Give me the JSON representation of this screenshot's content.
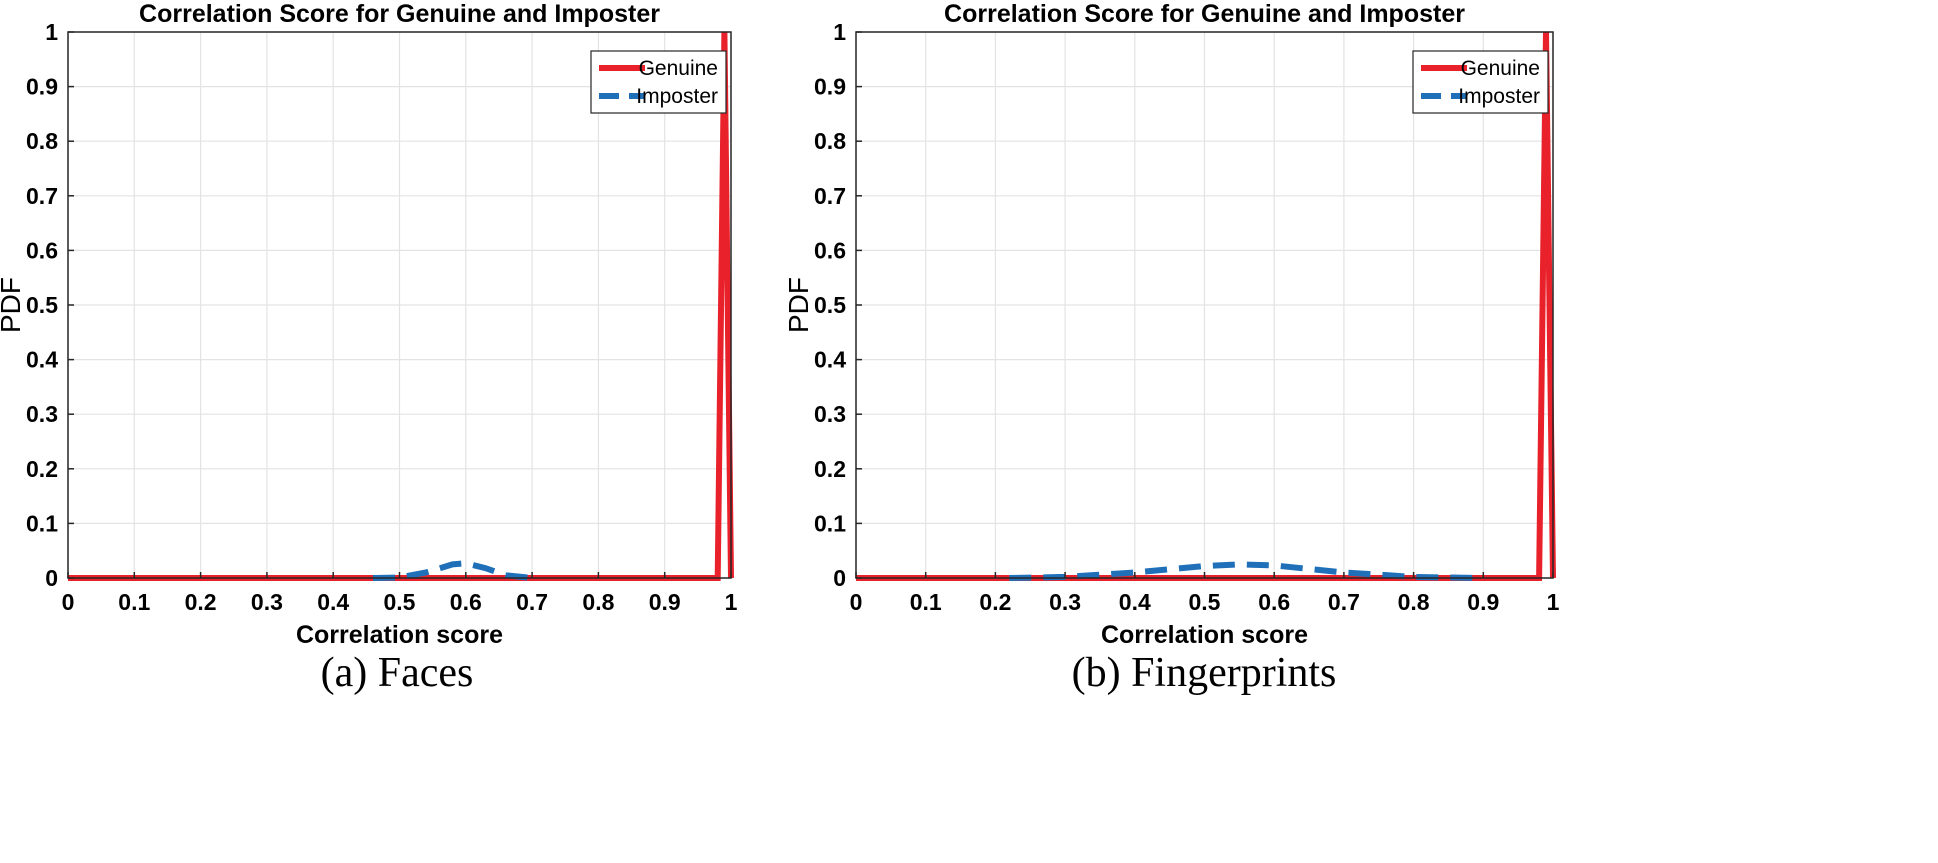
{
  "chart_data": [
    {
      "type": "line",
      "caption": "(a) Faces",
      "title": "Correlation Score for Genuine and Imposter",
      "xlabel": "Correlation score",
      "ylabel": "PDF",
      "xlim": [
        0,
        1
      ],
      "ylim": [
        0,
        1
      ],
      "grid": true,
      "xticks": [
        0,
        0.1,
        0.2,
        0.3,
        0.4,
        0.5,
        0.6,
        0.7,
        0.8,
        0.9,
        1
      ],
      "xtick_labels": [
        "0",
        "0.1",
        "0.2",
        "0.3",
        "0.4",
        "0.5",
        "0.6",
        "0.7",
        "0.8",
        "0.9",
        "1"
      ],
      "yticks": [
        0,
        0.1,
        0.2,
        0.3,
        0.4,
        0.5,
        0.6,
        0.7,
        0.8,
        0.9,
        1
      ],
      "ytick_labels": [
        "0",
        "0.1",
        "0.2",
        "0.3",
        "0.4",
        "0.5",
        "0.6",
        "0.7",
        "0.8",
        "0.9",
        "1"
      ],
      "legend_position": "top-right",
      "series": [
        {
          "name": "Genuine",
          "color": "#e8212b",
          "style": "solid",
          "x": [
            0,
            0.98,
            0.99,
            1.0
          ],
          "y": [
            0,
            0,
            1,
            0
          ]
        },
        {
          "name": "Imposter",
          "color": "#1f70b8",
          "style": "dashed",
          "x": [
            0.46,
            0.5,
            0.54,
            0.58,
            0.6,
            0.63,
            0.66,
            0.7
          ],
          "y": [
            0,
            0.001,
            0.01,
            0.025,
            0.027,
            0.018,
            0.005,
            0
          ]
        }
      ]
    },
    {
      "type": "line",
      "caption": "(b) Fingerprints",
      "title": "Correlation Score for Genuine and Imposter",
      "xlabel": "Correlation score",
      "ylabel": "PDF",
      "xlim": [
        0,
        1
      ],
      "ylim": [
        0,
        1
      ],
      "grid": true,
      "xticks": [
        0,
        0.1,
        0.2,
        0.3,
        0.4,
        0.5,
        0.6,
        0.7,
        0.8,
        0.9,
        1
      ],
      "xtick_labels": [
        "0",
        "0.1",
        "0.2",
        "0.3",
        "0.4",
        "0.5",
        "0.6",
        "0.7",
        "0.8",
        "0.9",
        "1"
      ],
      "yticks": [
        0,
        0.1,
        0.2,
        0.3,
        0.4,
        0.5,
        0.6,
        0.7,
        0.8,
        0.9,
        1
      ],
      "ytick_labels": [
        "0",
        "0.1",
        "0.2",
        "0.3",
        "0.4",
        "0.5",
        "0.6",
        "0.7",
        "0.8",
        "0.9",
        "1"
      ],
      "legend_position": "top-right",
      "series": [
        {
          "name": "Genuine",
          "color": "#e8212b",
          "style": "solid",
          "x": [
            0,
            0.98,
            0.99,
            1.0
          ],
          "y": [
            0,
            0,
            1,
            0
          ]
        },
        {
          "name": "Imposter",
          "color": "#1f70b8",
          "style": "dashed",
          "x": [
            0.22,
            0.3,
            0.4,
            0.5,
            0.55,
            0.6,
            0.7,
            0.8,
            0.89
          ],
          "y": [
            0,
            0.002,
            0.01,
            0.022,
            0.025,
            0.023,
            0.01,
            0.002,
            0
          ]
        }
      ]
    }
  ]
}
